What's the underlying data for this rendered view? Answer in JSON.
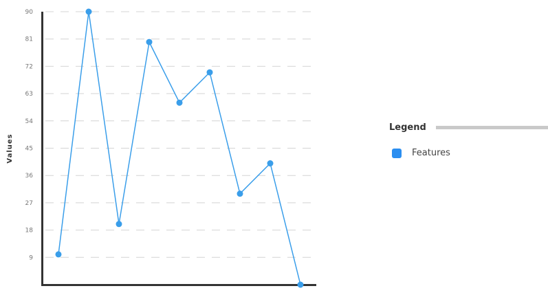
{
  "chart_data": {
    "type": "line",
    "ylabel": "Values",
    "xlabel": "",
    "ylim": [
      0,
      90
    ],
    "yticks": [
      9,
      18,
      27,
      36,
      45,
      54,
      63,
      72,
      81,
      90
    ],
    "grid": true,
    "legend_position": "right",
    "series": [
      {
        "name": "Features",
        "color": "#3a9eea",
        "values": [
          10,
          90,
          20,
          80,
          60,
          70,
          30,
          40,
          0
        ]
      }
    ]
  },
  "legend": {
    "title": "Legend",
    "items": [
      {
        "label": "Features",
        "color": "#2b8ef0"
      }
    ]
  }
}
